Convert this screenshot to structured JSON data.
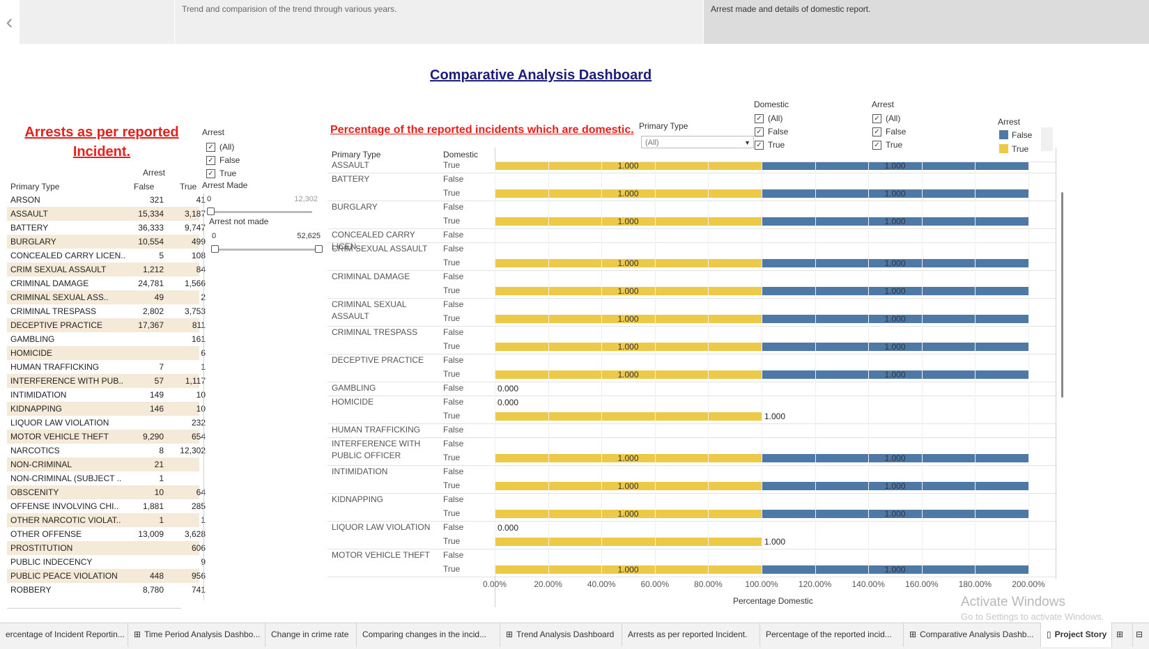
{
  "story": {
    "back_icon": "chevron-left-icon",
    "points": [
      {
        "text": ""
      },
      {
        "text": "Trend and comparision of the trend through various years."
      },
      {
        "text": "Arrest made and details of domestic report."
      }
    ]
  },
  "dashboard_title": "Comparative Analysis Dashboard",
  "left_panel": {
    "title": "Arrests as per reported Incident.",
    "arrest_header": "Arrest",
    "col_primary": "Primary Type",
    "col_false": "False",
    "col_true": "True",
    "rows": [
      {
        "type": "ARSON",
        "false": "321",
        "true": "41"
      },
      {
        "type": "ASSAULT",
        "false": "15,334",
        "true": "3,187"
      },
      {
        "type": "BATTERY",
        "false": "36,333",
        "true": "9,747"
      },
      {
        "type": "BURGLARY",
        "false": "10,554",
        "true": "499"
      },
      {
        "type": "CONCEALED CARRY LICEN..",
        "false": "5",
        "true": "108"
      },
      {
        "type": "CRIM SEXUAL ASSAULT",
        "false": "1,212",
        "true": "84"
      },
      {
        "type": "CRIMINAL DAMAGE",
        "false": "24,781",
        "true": "1,566"
      },
      {
        "type": "CRIMINAL SEXUAL ASS..",
        "false": "49",
        "true": "2"
      },
      {
        "type": "CRIMINAL TRESPASS",
        "false": "2,802",
        "true": "3,753"
      },
      {
        "type": "DECEPTIVE PRACTICE",
        "false": "17,367",
        "true": "811"
      },
      {
        "type": "GAMBLING",
        "false": "",
        "true": "161"
      },
      {
        "type": "HOMICIDE",
        "false": "",
        "true": "6"
      },
      {
        "type": "HUMAN TRAFFICKING",
        "false": "7",
        "true": "1"
      },
      {
        "type": "INTERFERENCE WITH PUB..",
        "false": "57",
        "true": "1,117"
      },
      {
        "type": "INTIMIDATION",
        "false": "149",
        "true": "10"
      },
      {
        "type": "KIDNAPPING",
        "false": "146",
        "true": "10"
      },
      {
        "type": "LIQUOR LAW VIOLATION",
        "false": "",
        "true": "232"
      },
      {
        "type": "MOTOR VEHICLE THEFT",
        "false": "9,290",
        "true": "654"
      },
      {
        "type": "NARCOTICS",
        "false": "8",
        "true": "12,302"
      },
      {
        "type": "NON-CRIMINAL",
        "false": "21",
        "true": ""
      },
      {
        "type": "NON-CRIMINAL (SUBJECT ..",
        "false": "1",
        "true": ""
      },
      {
        "type": "OBSCENITY",
        "false": "10",
        "true": "64"
      },
      {
        "type": "OFFENSE INVOLVING CHI..",
        "false": "1,881",
        "true": "285"
      },
      {
        "type": "OTHER NARCOTIC VIOLAT..",
        "false": "1",
        "true": "1"
      },
      {
        "type": "OTHER OFFENSE",
        "false": "13,009",
        "true": "3,628"
      },
      {
        "type": "PROSTITUTION",
        "false": "",
        "true": "606"
      },
      {
        "type": "PUBLIC INDECENCY",
        "false": "",
        "true": "9"
      },
      {
        "type": "PUBLIC PEACE VIOLATION",
        "false": "448",
        "true": "956"
      },
      {
        "type": "ROBBERY",
        "false": "8,780",
        "true": "741"
      }
    ]
  },
  "arrest_filter": {
    "label": "Arrest",
    "options": [
      {
        "label": "(All)",
        "checked": true
      },
      {
        "label": "False",
        "checked": true
      },
      {
        "label": "True",
        "checked": true
      }
    ]
  },
  "slider_made": {
    "label": "Arrest Made",
    "min": "0",
    "max": "12,302"
  },
  "slider_not_made": {
    "label": "Arrest not made",
    "min": "0",
    "max": "52,625"
  },
  "right_panel": {
    "title": "Percentage of the reported incidents which are domestic.",
    "primary_type_filter": {
      "label": "Primary Type",
      "value": "(All)"
    },
    "domestic_filter": {
      "label": "Domestic",
      "options": [
        {
          "label": "(All)",
          "checked": true
        },
        {
          "label": "False",
          "checked": true
        },
        {
          "label": "True",
          "checked": true
        }
      ]
    },
    "arrest_filter": {
      "label": "Arrest",
      "options": [
        {
          "label": "(All)",
          "checked": true
        },
        {
          "label": "False",
          "checked": true
        },
        {
          "label": "True",
          "checked": true
        }
      ]
    },
    "legend": {
      "title": "Arrest",
      "items": [
        {
          "label": "False",
          "color": "#4e79a7"
        },
        {
          "label": "True",
          "color": "#edc948"
        }
      ]
    },
    "col_primary": "Primary Type",
    "col_domestic": "Domestic"
  },
  "chart_data": {
    "type": "bar",
    "orientation": "horizontal",
    "stacked": true,
    "xlabel": "Percentage Domestic",
    "xlim": [
      0,
      200
    ],
    "xticks": [
      "0.00%",
      "20.00%",
      "40.00%",
      "60.00%",
      "80.00%",
      "100.00%",
      "120.00%",
      "140.00%",
      "160.00%",
      "180.00%",
      "200.00%"
    ],
    "series_colors": {
      "True": "#edc948",
      "False": "#4e79a7"
    },
    "groups": [
      {
        "type": "ASSAULT",
        "rows": [
          {
            "domestic": "True",
            "true": 1.0,
            "false": 1.0
          }
        ]
      },
      {
        "type": "BATTERY",
        "rows": [
          {
            "domestic": "False",
            "true": null,
            "false": null
          },
          {
            "domestic": "True",
            "true": 1.0,
            "false": 1.0
          }
        ]
      },
      {
        "type": "BURGLARY",
        "rows": [
          {
            "domestic": "False",
            "true": null,
            "false": null
          },
          {
            "domestic": "True",
            "true": 1.0,
            "false": 1.0
          }
        ]
      },
      {
        "type": "CONCEALED CARRY LICEN..",
        "rows": [
          {
            "domestic": "False",
            "true": null,
            "false": null
          }
        ]
      },
      {
        "type": "CRIM SEXUAL ASSAULT",
        "rows": [
          {
            "domestic": "False",
            "true": null,
            "false": null
          },
          {
            "domestic": "True",
            "true": 1.0,
            "false": 1.0
          }
        ]
      },
      {
        "type": "CRIMINAL DAMAGE",
        "rows": [
          {
            "domestic": "False",
            "true": null,
            "false": null
          },
          {
            "domestic": "True",
            "true": 1.0,
            "false": 1.0
          }
        ]
      },
      {
        "type": "CRIMINAL SEXUAL ASSAULT",
        "rows": [
          {
            "domestic": "False",
            "true": null,
            "false": null
          },
          {
            "domestic": "True",
            "true": 1.0,
            "false": 1.0
          }
        ]
      },
      {
        "type": "CRIMINAL TRESPASS",
        "rows": [
          {
            "domestic": "False",
            "true": null,
            "false": null
          },
          {
            "domestic": "True",
            "true": 1.0,
            "false": 1.0
          }
        ]
      },
      {
        "type": "DECEPTIVE PRACTICE",
        "rows": [
          {
            "domestic": "False",
            "true": null,
            "false": null
          },
          {
            "domestic": "True",
            "true": 1.0,
            "false": 1.0
          }
        ]
      },
      {
        "type": "GAMBLING",
        "rows": [
          {
            "domestic": "False",
            "true": 0.0,
            "false": null
          }
        ]
      },
      {
        "type": "HOMICIDE",
        "rows": [
          {
            "domestic": "False",
            "true": 0.0,
            "false": null
          },
          {
            "domestic": "True",
            "true": 1.0,
            "false": null
          }
        ]
      },
      {
        "type": "HUMAN TRAFFICKING",
        "rows": [
          {
            "domestic": "False",
            "true": null,
            "false": null
          }
        ]
      },
      {
        "type": "INTERFERENCE WITH PUBLIC OFFICER",
        "rows": [
          {
            "domestic": "False",
            "true": null,
            "false": null
          },
          {
            "domestic": "True",
            "true": 1.0,
            "false": 1.0
          }
        ]
      },
      {
        "type": "INTIMIDATION",
        "rows": [
          {
            "domestic": "False",
            "true": null,
            "false": null
          },
          {
            "domestic": "True",
            "true": 1.0,
            "false": 1.0
          }
        ]
      },
      {
        "type": "KIDNAPPING",
        "rows": [
          {
            "domestic": "False",
            "true": null,
            "false": null
          },
          {
            "domestic": "True",
            "true": 1.0,
            "false": 1.0
          }
        ]
      },
      {
        "type": "LIQUOR LAW VIOLATION",
        "rows": [
          {
            "domestic": "False",
            "true": 0.0,
            "false": null
          },
          {
            "domestic": "True",
            "true": 1.0,
            "false": null
          }
        ]
      },
      {
        "type": "MOTOR VEHICLE THEFT",
        "rows": [
          {
            "domestic": "False",
            "true": null,
            "false": null
          },
          {
            "domestic": "True",
            "true": 1.0,
            "false": 1.0
          }
        ]
      }
    ]
  },
  "watermark": {
    "line1": "Activate Windows",
    "line2": "Go to Settings to activate Windows."
  },
  "tabs": [
    {
      "label": "ercentage of Incident Reportin...",
      "icon": ""
    },
    {
      "label": "Time Period Analysis Dashbo...",
      "icon": "dashboard-icon"
    },
    {
      "label": "Change in crime rate",
      "icon": ""
    },
    {
      "label": "Comparing changes in the incid...",
      "icon": ""
    },
    {
      "label": "Trend Analysis Dashboard",
      "icon": "dashboard-icon"
    },
    {
      "label": "Arrests as per reported Incident.",
      "icon": ""
    },
    {
      "label": "Percentage of the reported incid...",
      "icon": ""
    },
    {
      "label": "Comparative Analysis Dashb...",
      "icon": "dashboard-icon"
    },
    {
      "label": "Project Story",
      "icon": "story-icon"
    }
  ]
}
